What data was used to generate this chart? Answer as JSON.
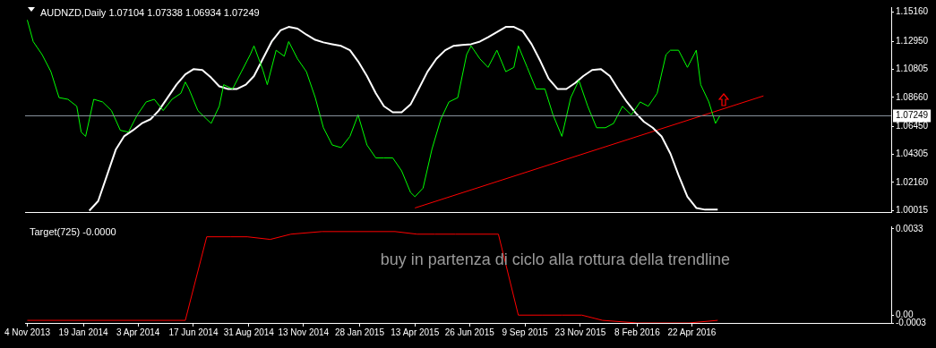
{
  "chart_data": [
    {
      "type": "line",
      "title": "AUDNZD,Daily 1.07104 1.07338 1.06934 1.07249",
      "xlim": [
        "2013-11-01",
        "2017-01-17"
      ],
      "ylim": [
        0.999,
        1.1555
      ],
      "yticks": [
        {
          "value": 1.1516,
          "label": "1.15160"
        },
        {
          "value": 1.1295,
          "label": "1.12950"
        },
        {
          "value": 1.10805,
          "label": "1.10805"
        },
        {
          "value": 1.0866,
          "label": "1.08660"
        },
        {
          "value": 1.0645,
          "label": "1.06450"
        },
        {
          "value": 1.04305,
          "label": "1.04305"
        },
        {
          "value": 1.0216,
          "label": "1.02160"
        },
        {
          "value": 1.00015,
          "label": "1.00015"
        }
      ],
      "tick_labels": "y",
      "grid": false,
      "marker": "none",
      "line_style": "solid",
      "ref_lines": [
        {
          "axis": "y",
          "value": 1.07249,
          "label": "1.07249",
          "color": "#8c96a0"
        }
      ],
      "series": [
        {
          "type": "line",
          "color": "#00ff00",
          "x": [
            "2013-11-04",
            "2013-11-12",
            "2013-11-24",
            "2013-12-06",
            "2013-12-17",
            "2013-12-29",
            "2014-01-10",
            "2014-01-16",
            "2014-01-22",
            "2014-02-02",
            "2014-02-14",
            "2014-02-26",
            "2014-03-10",
            "2014-03-21",
            "2014-04-02",
            "2014-04-14",
            "2014-04-25",
            "2014-05-07",
            "2014-05-19",
            "2014-05-31",
            "2014-06-06",
            "2014-06-11",
            "2014-06-23",
            "2014-07-05",
            "2014-07-11",
            "2014-07-22",
            "2014-07-28",
            "2014-08-09",
            "2014-08-21",
            "2014-09-02",
            "2014-09-07",
            "2014-09-19",
            "2014-09-25",
            "2014-10-07",
            "2014-10-18",
            "2014-10-24",
            "2014-11-05",
            "2014-11-17",
            "2014-11-29",
            "2014-12-10",
            "2014-12-22",
            "2015-01-03",
            "2015-01-15",
            "2015-01-26",
            "2015-02-07",
            "2015-02-19",
            "2015-03-02",
            "2015-03-14",
            "2015-03-26",
            "2015-04-07",
            "2015-04-13",
            "2015-04-24",
            "2015-05-06",
            "2015-05-18",
            "2015-05-29",
            "2015-06-10",
            "2015-06-22",
            "2015-06-28",
            "2015-07-10",
            "2015-07-21",
            "2015-08-02",
            "2015-08-14",
            "2015-08-25",
            "2015-08-31",
            "2015-09-12",
            "2015-09-24",
            "2015-10-06",
            "2015-10-17",
            "2015-10-29",
            "2015-11-10",
            "2015-11-21",
            "2015-12-03",
            "2015-12-15",
            "2015-12-27",
            "2016-01-07",
            "2016-01-19",
            "2016-01-31",
            "2016-02-12",
            "2016-02-23",
            "2016-03-06",
            "2016-03-18",
            "2016-03-24",
            "2016-04-04",
            "2016-04-16",
            "2016-04-28",
            "2016-05-04",
            "2016-05-15",
            "2016-05-24",
            "2016-05-30"
          ],
          "values": [
            1.1457,
            1.1292,
            1.1193,
            1.1062,
            1.0864,
            1.0851,
            1.0798,
            1.0601,
            1.0568,
            1.0851,
            1.0831,
            1.0765,
            1.0614,
            1.0601,
            1.0732,
            1.0831,
            1.0851,
            1.0765,
            1.0851,
            1.0897,
            1.0983,
            1.093,
            1.0765,
            1.0699,
            1.0667,
            1.0798,
            1.0963,
            1.093,
            1.1062,
            1.1193,
            1.1259,
            1.1075,
            1.0963,
            1.1226,
            1.118,
            1.1292,
            1.116,
            1.1062,
            1.0864,
            1.0634,
            1.0502,
            1.0482,
            1.0568,
            1.0732,
            1.0502,
            1.0403,
            1.0403,
            1.0403,
            1.0304,
            1.014,
            1.0107,
            1.0173,
            1.0469,
            1.0699,
            1.0831,
            1.0864,
            1.1193,
            1.1259,
            1.116,
            1.1095,
            1.1226,
            1.1062,
            1.1095,
            1.1259,
            1.1095,
            1.093,
            1.093,
            1.0732,
            1.0568,
            1.0864,
            1.0996,
            1.0798,
            1.0634,
            1.0634,
            1.0667,
            1.0798,
            1.0732,
            1.0831,
            1.0798,
            1.0897,
            1.1193,
            1.1226,
            1.1226,
            1.1095,
            1.1226,
            1.0963,
            1.0831,
            1.0667,
            1.0725
          ]
        },
        {
          "type": "line",
          "color": "#ffffff",
          "x": [
            "2014-01-27",
            "2014-02-08",
            "2014-02-20",
            "2014-03-04",
            "2014-03-15",
            "2014-03-27",
            "2014-04-08",
            "2014-04-20",
            "2014-05-01",
            "2014-05-13",
            "2014-05-25",
            "2014-06-06",
            "2014-06-17",
            "2014-06-29",
            "2014-07-11",
            "2014-07-22",
            "2014-08-03",
            "2014-08-15",
            "2014-08-27",
            "2014-09-07",
            "2014-09-19",
            "2014-10-01",
            "2014-10-13",
            "2014-10-24",
            "2014-11-05",
            "2014-11-17",
            "2014-11-29",
            "2014-12-10",
            "2014-12-22",
            "2015-01-03",
            "2015-01-15",
            "2015-01-26",
            "2015-02-07",
            "2015-02-19",
            "2015-03-02",
            "2015-03-14",
            "2015-03-26",
            "2015-04-07",
            "2015-04-18",
            "2015-04-30",
            "2015-05-12",
            "2015-05-24",
            "2015-06-04",
            "2015-06-16",
            "2015-06-28",
            "2015-07-10",
            "2015-07-21",
            "2015-08-02",
            "2015-08-14",
            "2015-08-25",
            "2015-09-06",
            "2015-09-18",
            "2015-09-30",
            "2015-10-11",
            "2015-10-23",
            "2015-11-04",
            "2015-11-16",
            "2015-11-27",
            "2015-12-09",
            "2015-12-21",
            "2016-01-02",
            "2016-01-13",
            "2016-01-25",
            "2016-02-06",
            "2016-02-17",
            "2016-02-29",
            "2016-03-12",
            "2016-03-24",
            "2016-04-04",
            "2016-04-16",
            "2016-04-28",
            "2016-05-10",
            "2016-05-27"
          ],
          "values": [
            1.0,
            1.0074,
            1.0271,
            1.0469,
            1.0568,
            1.0614,
            1.0667,
            1.0699,
            1.0765,
            1.0864,
            1.0963,
            1.1042,
            1.1081,
            1.1075,
            1.1016,
            1.095,
            1.093,
            1.093,
            1.0963,
            1.1029,
            1.116,
            1.1292,
            1.1378,
            1.1404,
            1.1391,
            1.1345,
            1.1305,
            1.1286,
            1.1272,
            1.1259,
            1.1226,
            1.1141,
            1.1029,
            1.0897,
            1.0798,
            1.0752,
            1.0752,
            1.0811,
            1.093,
            1.1062,
            1.116,
            1.1226,
            1.1259,
            1.1266,
            1.1272,
            1.1292,
            1.1325,
            1.1365,
            1.1404,
            1.1404,
            1.1371,
            1.1272,
            1.1141,
            1.1009,
            1.093,
            1.093,
            1.0976,
            1.1029,
            1.1075,
            1.1081,
            1.1029,
            1.093,
            1.0831,
            1.0746,
            1.068,
            1.0634,
            1.0568,
            1.0436,
            1.0271,
            1.0107,
            1.0021,
            1.0008,
            1.0008
          ]
        },
        {
          "type": "line",
          "color": "#ff0000",
          "x": [
            "2015-04-13",
            "2016-07-28"
          ],
          "values": [
            1.0021,
            1.0877
          ]
        }
      ]
    },
    {
      "type": "line",
      "title": "Target(725) -0.0000",
      "xlim": [
        "2013-11-01",
        "2017-01-17"
      ],
      "ylim": [
        -0.0003,
        0.0034
      ],
      "xticks": [
        {
          "value": "2013-11-04",
          "label": "4 Nov 2013"
        },
        {
          "value": "2014-01-19",
          "label": "19 Jan 2014"
        },
        {
          "value": "2014-04-03",
          "label": "3 Apr 2014"
        },
        {
          "value": "2014-06-17",
          "label": "17 Jun 2014"
        },
        {
          "value": "2014-08-31",
          "label": "31 Aug 2014"
        },
        {
          "value": "2014-11-13",
          "label": "13 Nov 2014"
        },
        {
          "value": "2015-01-28",
          "label": "28 Jan 2015"
        },
        {
          "value": "2015-04-13",
          "label": "13 Apr 2015"
        },
        {
          "value": "2015-06-26",
          "label": "26 Jun 2015"
        },
        {
          "value": "2015-09-09",
          "label": "9 Sep 2015"
        },
        {
          "value": "2015-11-23",
          "label": "23 Nov 2015"
        },
        {
          "value": "2016-02-08",
          "label": "8 Feb 2016"
        },
        {
          "value": "2016-04-22",
          "label": "22 Apr 2016"
        }
      ],
      "yticks": [
        0.0033,
        {
          "value": 0,
          "label": "0.00"
        },
        -0.0003
      ],
      "grid": false,
      "marker": "none",
      "line_style": "solid",
      "annotations": [
        "buy in partenza di ciclo alla rottura della trendline"
      ],
      "series": [
        {
          "type": "line",
          "color": "#ff0000",
          "x": [
            "2013-11-04",
            "2014-06-06",
            "2014-07-05",
            "2014-08-06",
            "2014-08-29",
            "2014-09-29",
            "2014-10-27",
            "2014-12-08",
            "2015-03-17",
            "2015-04-16",
            "2015-05-10",
            "2015-06-07",
            "2015-08-04",
            "2015-08-31",
            "2015-10-02",
            "2015-10-29",
            "2015-11-25",
            "2015-12-23",
            "2016-02-08",
            "2016-04-18",
            "2016-05-27"
          ],
          "values": [
            -0.0002,
            -0.0002,
            0.003,
            0.003,
            0.003,
            0.0029,
            0.0031,
            0.0032,
            0.0032,
            0.0031,
            0.0031,
            0.0031,
            0.0031,
            0.0,
            0.0,
            0.0,
            0.0,
            -0.0002,
            -0.0003,
            -0.0003,
            -0.0002
          ]
        }
      ]
    }
  ]
}
